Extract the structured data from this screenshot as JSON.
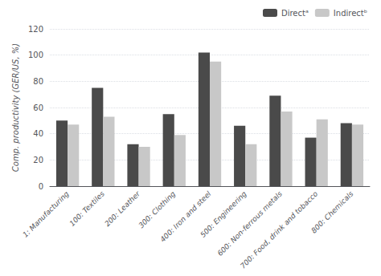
{
  "chart_data": {
    "type": "bar",
    "ylabel": "Comp. productivity (GER/US, %)",
    "categories": [
      "1: Manufacturing",
      "100: Textiles",
      "200: Leather",
      "300: Clothing",
      "400: Iron and steel",
      "500: Engineering",
      "600: Non-ferrous metals",
      "700: Food, drink and tobacco",
      "800: Chemicals"
    ],
    "series": [
      {
        "name": "Directᵃ",
        "color": "#4a4a4a",
        "values": [
          50,
          75,
          32,
          55,
          102,
          46,
          69,
          37,
          48
        ]
      },
      {
        "name": "Indirectᵇ",
        "color": "#c8c8c8",
        "values": [
          47,
          53,
          30,
          39,
          95,
          32,
          57,
          51,
          47
        ]
      }
    ],
    "ylim": [
      0,
      120
    ],
    "yticks": [
      0,
      20,
      40,
      60,
      80,
      100,
      120
    ],
    "grid": true,
    "legend": "upper right"
  }
}
